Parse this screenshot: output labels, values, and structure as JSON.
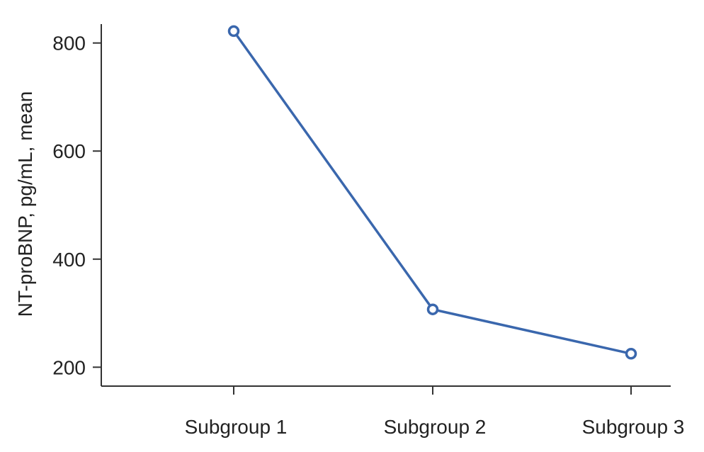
{
  "chart_data": {
    "type": "line",
    "title": "",
    "xlabel": "",
    "ylabel": "NT-proBNP, pg/mL, mean",
    "categories": [
      "Subgroup 1",
      "Subgroup 2",
      "Subgroup 3"
    ],
    "series": [
      {
        "values": [
          822,
          307,
          225
        ],
        "color": "#3a67ad"
      }
    ],
    "y_ticks": [
      200,
      400,
      600,
      800
    ],
    "ylim": [
      165,
      835
    ],
    "grid": false,
    "legend": "none",
    "markers": "open-circle"
  }
}
